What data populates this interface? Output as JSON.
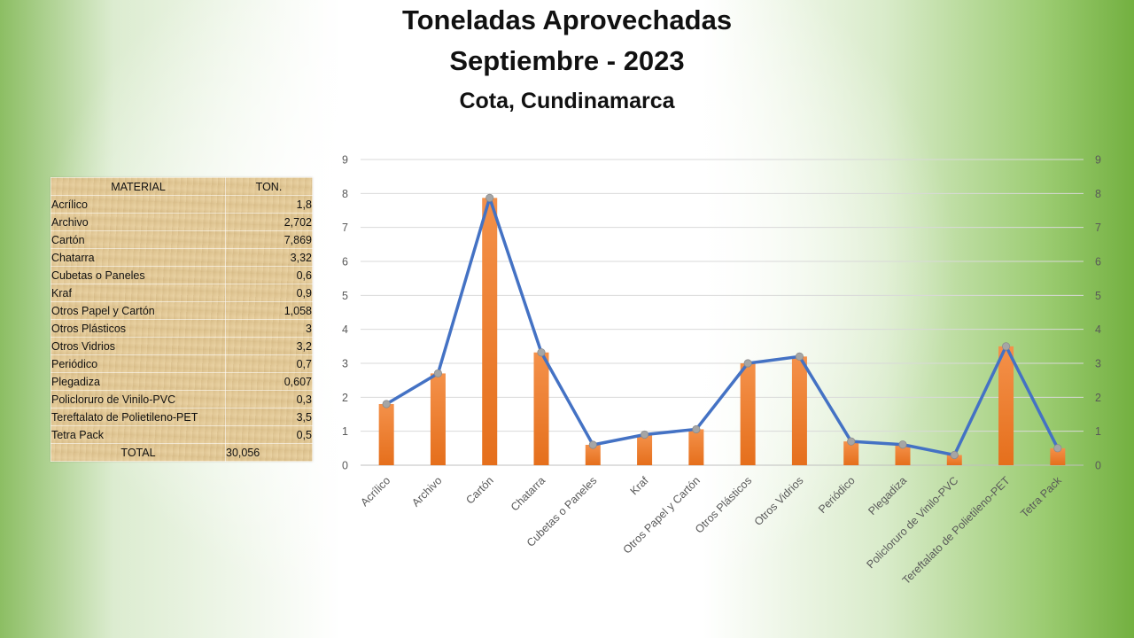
{
  "title_line1": "Toneladas Aprovechadas",
  "title_line2": "Septiembre - 2023",
  "subtitle": "Cota, Cundinamarca",
  "table": {
    "header_material": "MATERIAL",
    "header_ton": "TON.",
    "rows": [
      {
        "material": "Acrílico",
        "ton": "1,8"
      },
      {
        "material": "Archivo",
        "ton": "2,702"
      },
      {
        "material": "Cartón",
        "ton": "7,869"
      },
      {
        "material": "Chatarra",
        "ton": "3,32"
      },
      {
        "material": "Cubetas o Paneles",
        "ton": "0,6"
      },
      {
        "material": "Kraf",
        "ton": "0,9"
      },
      {
        "material": "Otros Papel y Cartón",
        "ton": "1,058"
      },
      {
        "material": "Otros Plásticos",
        "ton": "3"
      },
      {
        "material": "Otros Vidrios",
        "ton": "3,2"
      },
      {
        "material": "Periódico",
        "ton": "0,7"
      },
      {
        "material": "Plegadiza",
        "ton": "0,607"
      },
      {
        "material": "Policloruro de Vinilo-PVC",
        "ton": "0,3"
      },
      {
        "material": "Tereftalato de Polietileno-PET",
        "ton": "3,5"
      },
      {
        "material": "Tetra Pack",
        "ton": "0,5"
      }
    ],
    "total_label": "TOTAL",
    "total_value": "30,056"
  },
  "chart_data": {
    "type": "bar",
    "categories": [
      "Acrílico",
      "Archivo",
      "Cartón",
      "Chatarra",
      "Cubetas o Paneles",
      "Kraf",
      "Otros Papel y Cartón",
      "Otros Plásticos",
      "Otros Vidrios",
      "Periódico",
      "Plegadiza",
      "Policloruro de Vinilo-PVC",
      "Tereftalato de Polietileno-PET",
      "Tetra Pack"
    ],
    "series": [
      {
        "type": "bar",
        "values": [
          1.8,
          2.702,
          7.869,
          3.32,
          0.6,
          0.9,
          1.058,
          3,
          3.2,
          0.7,
          0.607,
          0.3,
          3.5,
          0.5
        ],
        "color": "#ed7d31"
      },
      {
        "type": "line",
        "values": [
          1.8,
          2.702,
          7.869,
          3.32,
          0.6,
          0.9,
          1.058,
          3,
          3.2,
          0.7,
          0.607,
          0.3,
          3.5,
          0.5
        ],
        "color": "#4472c4",
        "marker_color": "#a5a5a5"
      }
    ],
    "ylim": [
      0,
      9
    ],
    "yticks": [
      "0",
      "1",
      "2",
      "3",
      "4",
      "5",
      "6",
      "7",
      "8",
      "9"
    ],
    "secondary_ylim": [
      0,
      9
    ],
    "secondary_yticks": [
      "0",
      "1",
      "2",
      "3",
      "4",
      "5",
      "6",
      "7",
      "8",
      "9"
    ],
    "grid": true,
    "legend": "none",
    "xlabel": "",
    "ylabel": ""
  }
}
